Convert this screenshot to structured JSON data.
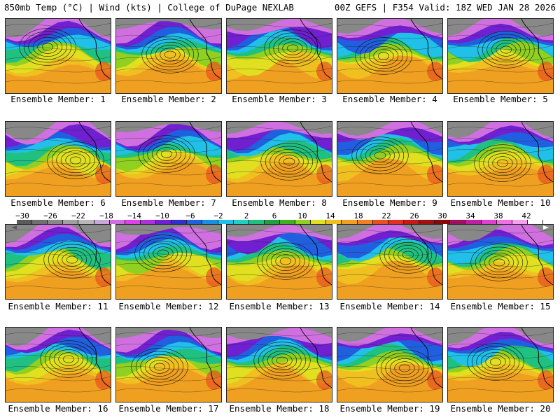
{
  "header": {
    "left_text": "850mb Temp (°C) | Wind (kts) | College of DuPage NEXLAB",
    "right_text": "00Z GEFS | F354 Valid: 18Z WED JAN 28 2026"
  },
  "members": [
    {
      "label": "Ensemble Member: 1",
      "low": "Gulf of Alaska low",
      "cold": 0.55
    },
    {
      "label": "Ensemble Member: 2",
      "low": "Gulf of Alaska low",
      "cold": 0.5
    },
    {
      "label": "Ensemble Member: 3",
      "low": "Gulf of Alaska low",
      "cold": 0.6
    },
    {
      "label": "Ensemble Member: 4",
      "low": "Gulf of Alaska low",
      "cold": 0.45
    },
    {
      "label": "Ensemble Member: 5",
      "low": "Gulf of Alaska low",
      "cold": 0.4
    },
    {
      "label": "Ensemble Member: 6",
      "low": "Gulf of Alaska low",
      "cold": 0.5
    },
    {
      "label": "Ensemble Member: 7",
      "low": "Gulf of Alaska low",
      "cold": 0.5
    },
    {
      "label": "Ensemble Member: 8",
      "low": "Gulf of Alaska low",
      "cold": 0.6
    },
    {
      "label": "Ensemble Member: 9",
      "low": "Gulf of Alaska low",
      "cold": 0.65
    },
    {
      "label": "Ensemble Member: 10",
      "low": "Gulf of Alaska low",
      "cold": 0.6
    },
    {
      "label": "Ensemble Member: 11",
      "low": "Gulf of Alaska low",
      "cold": 0.55
    },
    {
      "label": "Ensemble Member: 12",
      "low": "Gulf of Alaska low",
      "cold": 0.5
    },
    {
      "label": "Ensemble Member: 13",
      "low": "Gulf of Alaska low",
      "cold": 0.55
    },
    {
      "label": "Ensemble Member: 14",
      "low": "Gulf of Alaska low",
      "cold": 0.6
    },
    {
      "label": "Ensemble Member: 15",
      "low": "Gulf of Alaska low",
      "cold": 0.5
    },
    {
      "label": "Ensemble Member: 16",
      "low": "Gulf of Alaska low",
      "cold": 0.55
    },
    {
      "label": "Ensemble Member: 17",
      "low": "Gulf of Alaska low",
      "cold": 0.5
    },
    {
      "label": "Ensemble Member: 18",
      "low": "Gulf of Alaska low",
      "cold": 0.55
    },
    {
      "label": "Ensemble Member: 19",
      "low": "Gulf of Alaska low",
      "cold": 0.6
    },
    {
      "label": "Ensemble Member: 20",
      "low": "Gulf of Alaska low",
      "cold": 0.55
    }
  ],
  "colorbar": {
    "labels": [
      "−30",
      "−26",
      "−22",
      "−18",
      "−14",
      "−10",
      "−6",
      "−2",
      "2",
      "6",
      "10",
      "14",
      "18",
      "22",
      "26",
      "30",
      "34",
      "38",
      "42"
    ],
    "colors": [
      "#5a5a5a",
      "#707070",
      "#888888",
      "#a0a0a0",
      "#b8b8b8",
      "#c8a8d8",
      "#d070e0",
      "#e040f0",
      "#b030e0",
      "#7020d0",
      "#3030d0",
      "#2060e0",
      "#1890e8",
      "#20c0e8",
      "#20d0c0",
      "#20c080",
      "#20a040",
      "#40b020",
      "#90d020",
      "#e0e020",
      "#f0c020",
      "#f0a020",
      "#f08020",
      "#e85020",
      "#e03020",
      "#c81818",
      "#a01010",
      "#880808",
      "#a01060",
      "#c020a0",
      "#e040d0",
      "#f070e0",
      "#f8a0f0",
      "#ffffff"
    ]
  }
}
